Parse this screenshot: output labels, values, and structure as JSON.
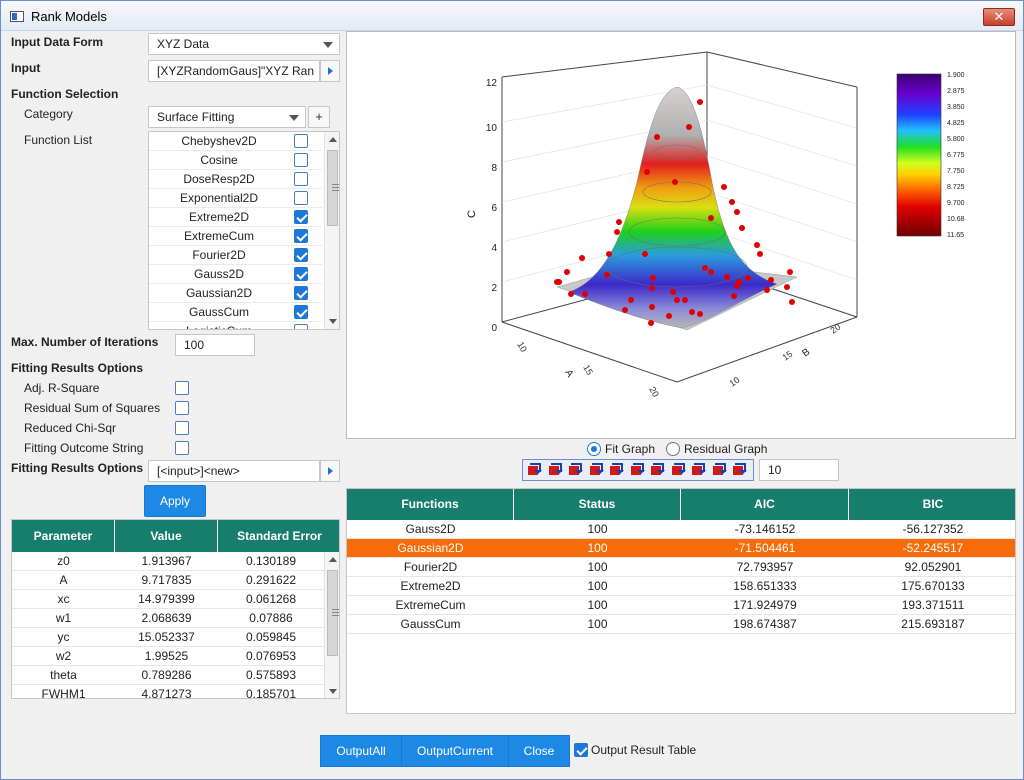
{
  "window": {
    "title": "Rank Models",
    "close_label": "✕"
  },
  "form": {
    "input_data_form_label": "Input Data Form",
    "input_data_form_value": "XYZ Data",
    "input_label": "Input",
    "input_value": "[XYZRandomGaus]\"XYZ Ran",
    "function_selection_label": "Function Selection",
    "category_label": "Category",
    "category_value": "Surface Fitting",
    "category_add_label": "+",
    "function_list_label": "Function List",
    "functions": [
      {
        "name": "Chebyshev2D",
        "checked": false
      },
      {
        "name": "Cosine",
        "checked": false
      },
      {
        "name": "DoseResp2D",
        "checked": false
      },
      {
        "name": "Exponential2D",
        "checked": false
      },
      {
        "name": "Extreme2D",
        "checked": true
      },
      {
        "name": "ExtremeCum",
        "checked": true
      },
      {
        "name": "Fourier2D",
        "checked": true
      },
      {
        "name": "Gauss2D",
        "checked": true
      },
      {
        "name": "Gaussian2D",
        "checked": true
      },
      {
        "name": "GaussCum",
        "checked": true
      },
      {
        "name": "LogisticCum",
        "checked": false
      }
    ],
    "max_iterations_label": "Max. Number of Iterations",
    "max_iterations_value": "100",
    "fitting_results_options_label": "Fitting Results Options",
    "result_options": [
      {
        "label": "Adj. R-Square",
        "checked": false
      },
      {
        "label": "Residual Sum of Squares",
        "checked": false
      },
      {
        "label": "Reduced Chi-Sqr",
        "checked": false
      },
      {
        "label": "Fitting Outcome String",
        "checked": false
      }
    ],
    "fitting_results_output_label": "Fitting Results Options",
    "fitting_results_output_value": "[<input>]<new>",
    "apply_label": "Apply"
  },
  "parameters": {
    "headers": [
      "Parameter",
      "Value",
      "Standard Error"
    ],
    "rows": [
      [
        "z0",
        "1.913967",
        "0.130189"
      ],
      [
        "A",
        "9.717835",
        "0.291622"
      ],
      [
        "xc",
        "14.979399",
        "0.061268"
      ],
      [
        "w1",
        "2.068639",
        "0.07886"
      ],
      [
        "yc",
        "15.052337",
        "0.059845"
      ],
      [
        "w2",
        "1.99525",
        "0.076953"
      ],
      [
        "theta",
        "0.789286",
        "0.575893"
      ],
      [
        "FWHM1",
        "4.871273",
        "0.185701"
      ]
    ]
  },
  "graph": {
    "z_axis_label": "C",
    "x_axis_label": "A",
    "y_axis_label": "B",
    "z_ticks": [
      "0",
      "2",
      "4",
      "6",
      "8",
      "10",
      "12"
    ],
    "x_ticks": [
      "10",
      "15",
      "20"
    ],
    "y_ticks": [
      "10",
      "15",
      "20"
    ],
    "colorbar_ticks": [
      "1.900",
      "2.875",
      "3.850",
      "4.825",
      "5.800",
      "6.775",
      "7.750",
      "8.725",
      "9.700",
      "10.68",
      "11.65"
    ],
    "colors": {
      "low": "#3d0070",
      "mid": "#1fd01a",
      "high": "#9b0000",
      "points": "#e00000"
    }
  },
  "graph_mode": {
    "fit_label": "Fit Graph",
    "residual_label": "Residual Graph",
    "selected": "fit"
  },
  "toolbar": {
    "icons": [
      "rotate-cw-icon",
      "rotate-ccw-icon",
      "tilt-left-icon",
      "tilt-right-icon",
      "elevate-icon",
      "lower-icon",
      "perspective-icon",
      "reset-icon",
      "fit-frame-icon",
      "extend-icon",
      "resize-icon"
    ],
    "step_value": "10"
  },
  "results": {
    "headers": [
      "Functions",
      "Status",
      "AIC",
      "BIC"
    ],
    "selected_index": 1,
    "rows": [
      [
        "Gauss2D",
        "100",
        "-73.146152",
        "-56.127352"
      ],
      [
        "Gaussian2D",
        "100",
        "-71.504461",
        "-52.245517"
      ],
      [
        "Fourier2D",
        "100",
        "72.793957",
        "92.052901"
      ],
      [
        "Extreme2D",
        "100",
        "158.651333",
        "175.670133"
      ],
      [
        "ExtremeCum",
        "100",
        "171.924979",
        "193.371511"
      ],
      [
        "GaussCum",
        "100",
        "198.674387",
        "215.693187"
      ]
    ]
  },
  "bottom": {
    "output_all_label": "OutputAll",
    "output_current_label": "OutputCurrent",
    "close_label": "Close",
    "output_result_table_label": "Output Result Table",
    "output_result_table_checked": true
  }
}
